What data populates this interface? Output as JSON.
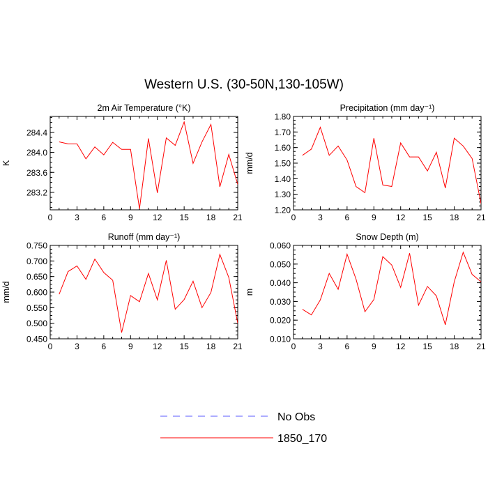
{
  "page_title": "Western U.S. (30-50N,130-105W)",
  "legend": {
    "placement": "bottom-center",
    "entries": [
      {
        "label": "No Obs",
        "color": "#5a5aff",
        "dash": true
      },
      {
        "label": "1850_170",
        "color": "#ff0000",
        "dash": false
      }
    ]
  },
  "chart_data": [
    {
      "type": "line",
      "title": "2m Air Temperature (°K)",
      "ylabel": "K",
      "xlim": [
        0,
        21
      ],
      "ylim": [
        282.85,
        284.72
      ],
      "xticks": [
        0,
        3,
        6,
        9,
        12,
        15,
        18,
        21
      ],
      "yticks": [
        283.2,
        283.6,
        284.0,
        284.4
      ],
      "ytick_labels": [
        "283.2",
        "283.6",
        "284.0",
        "284.4"
      ],
      "grid": false,
      "x": [
        1,
        2,
        3,
        4,
        5,
        6,
        7,
        8,
        9,
        10,
        11,
        12,
        13,
        14,
        15,
        16,
        17,
        18,
        19,
        20,
        21
      ],
      "series": [
        {
          "name": "1850_170",
          "color": "#ff0000",
          "values": [
            284.21,
            284.17,
            284.17,
            283.87,
            284.11,
            283.95,
            284.2,
            284.06,
            284.06,
            282.87,
            284.28,
            283.19,
            284.29,
            284.14,
            284.61,
            283.78,
            284.21,
            284.56,
            283.31,
            283.96,
            283.36
          ]
        }
      ]
    },
    {
      "type": "line",
      "title": "Precipitation (mm day⁻¹)",
      "ylabel": "mm/d",
      "xlim": [
        0,
        21
      ],
      "ylim": [
        1.2,
        1.8
      ],
      "xticks": [
        0,
        3,
        6,
        9,
        12,
        15,
        18,
        21
      ],
      "yticks": [
        1.2,
        1.3,
        1.4,
        1.5,
        1.6,
        1.7,
        1.8
      ],
      "ytick_labels": [
        "1.20",
        "1.30",
        "1.40",
        "1.50",
        "1.60",
        "1.70",
        "1.80"
      ],
      "grid": false,
      "x": [
        1,
        2,
        3,
        4,
        5,
        6,
        7,
        8,
        9,
        10,
        11,
        12,
        13,
        14,
        15,
        16,
        17,
        18,
        19,
        20,
        21
      ],
      "series": [
        {
          "name": "1850_170",
          "color": "#ff0000",
          "values": [
            1.55,
            1.59,
            1.73,
            1.55,
            1.61,
            1.52,
            1.35,
            1.31,
            1.66,
            1.36,
            1.35,
            1.63,
            1.54,
            1.54,
            1.45,
            1.57,
            1.34,
            1.66,
            1.61,
            1.53,
            1.24
          ]
        }
      ]
    },
    {
      "type": "line",
      "title": "Runoff (mm day⁻¹)",
      "ylabel": "mm/d",
      "xlim": [
        0,
        21
      ],
      "ylim": [
        0.45,
        0.75
      ],
      "xticks": [
        0,
        3,
        6,
        9,
        12,
        15,
        18,
        21
      ],
      "yticks": [
        0.45,
        0.5,
        0.55,
        0.6,
        0.65,
        0.7,
        0.75
      ],
      "ytick_labels": [
        "0.450",
        "0.500",
        "0.550",
        "0.600",
        "0.650",
        "0.700",
        "0.750"
      ],
      "grid": false,
      "x": [
        1,
        2,
        3,
        4,
        5,
        6,
        7,
        8,
        9,
        10,
        11,
        12,
        13,
        14,
        15,
        16,
        17,
        18,
        19,
        20,
        21
      ],
      "series": [
        {
          "name": "1850_170",
          "color": "#ff0000",
          "values": [
            0.593,
            0.666,
            0.684,
            0.641,
            0.706,
            0.663,
            0.638,
            0.47,
            0.589,
            0.569,
            0.66,
            0.575,
            0.702,
            0.545,
            0.576,
            0.635,
            0.55,
            0.599,
            0.721,
            0.647,
            0.5
          ]
        }
      ]
    },
    {
      "type": "line",
      "title": "Snow Depth (m)",
      "ylabel": "m",
      "xlim": [
        0,
        21
      ],
      "ylim": [
        0.01,
        0.06
      ],
      "xticks": [
        0,
        3,
        6,
        9,
        12,
        15,
        18,
        21
      ],
      "yticks": [
        0.01,
        0.02,
        0.03,
        0.04,
        0.05,
        0.06
      ],
      "ytick_labels": [
        "0.010",
        "0.020",
        "0.030",
        "0.040",
        "0.050",
        "0.060"
      ],
      "grid": false,
      "x": [
        1,
        2,
        3,
        4,
        5,
        6,
        7,
        8,
        9,
        10,
        11,
        12,
        13,
        14,
        15,
        16,
        17,
        18,
        19,
        20,
        21
      ],
      "series": [
        {
          "name": "1850_170",
          "color": "#ff0000",
          "values": [
            0.0258,
            0.0228,
            0.0308,
            0.045,
            0.0365,
            0.0553,
            0.042,
            0.0245,
            0.031,
            0.054,
            0.0495,
            0.0375,
            0.0558,
            0.028,
            0.038,
            0.033,
            0.0175,
            0.0405,
            0.0563,
            0.0445,
            0.0405
          ]
        }
      ]
    }
  ]
}
